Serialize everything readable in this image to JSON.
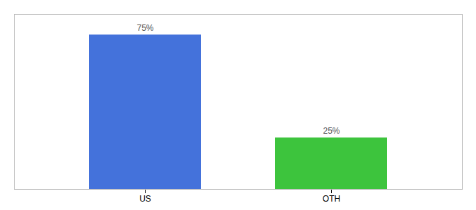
{
  "chart_data": {
    "type": "bar",
    "categories": [
      "US",
      "OTH"
    ],
    "values": [
      75,
      25
    ],
    "value_labels": [
      "75%",
      "25%"
    ],
    "colors": [
      "#4472db",
      "#3dc43d"
    ],
    "ylim": [
      0,
      85
    ],
    "yticks": [],
    "data_labels": true,
    "tick_labels": "x"
  }
}
